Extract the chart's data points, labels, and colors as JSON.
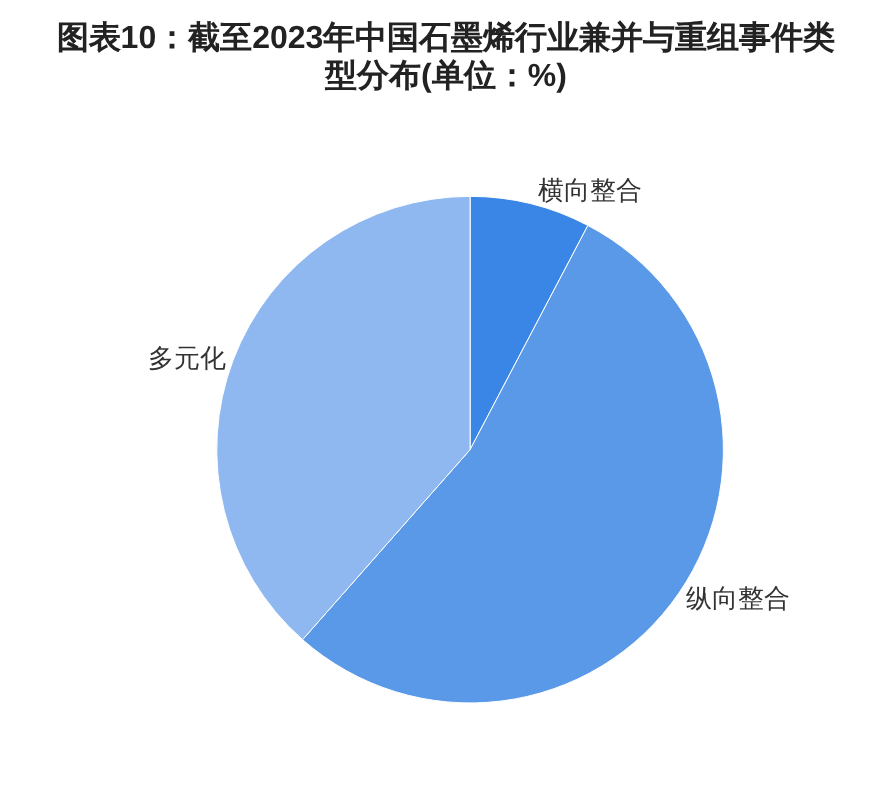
{
  "chart_data": {
    "type": "pie",
    "title": "图表10：截至2023年中国石墨烯行业兼并与重组事件类型分布(单位：%)",
    "categories": [
      "横向整合",
      "纵向整合",
      "多元化"
    ],
    "values": [
      7.7,
      53.8,
      38.5
    ],
    "colors": [
      "#3a86e6",
      "#5a99e7",
      "#8fb8f1"
    ]
  }
}
